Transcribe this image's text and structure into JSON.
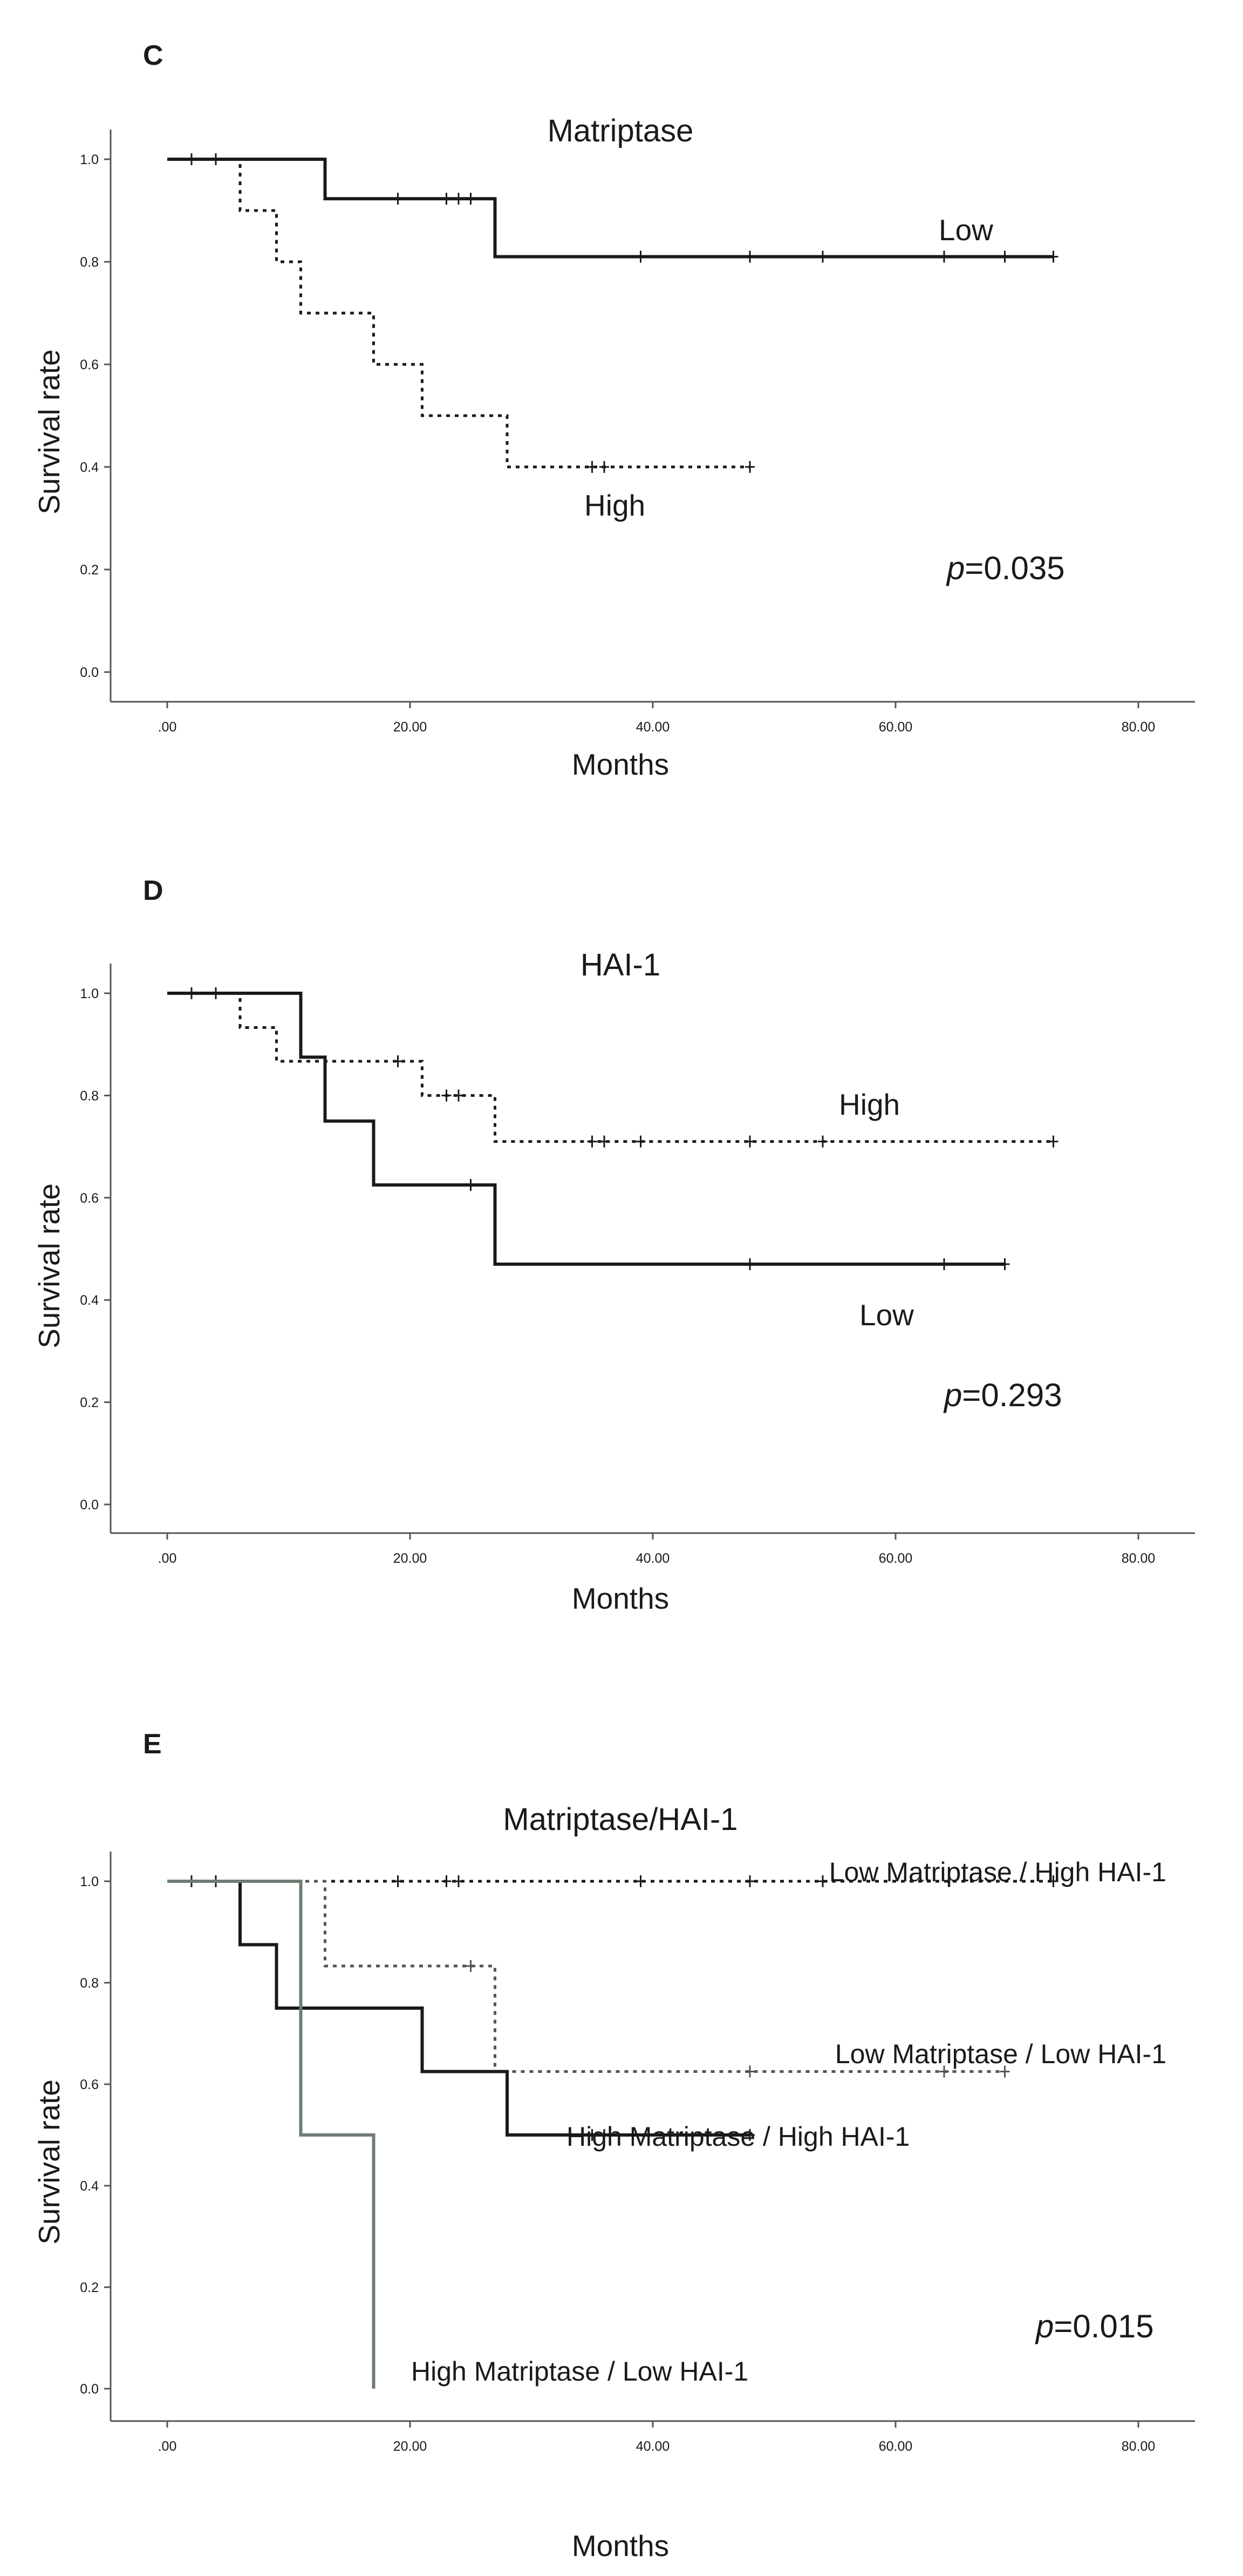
{
  "panels": [
    {
      "id": "C",
      "letter": "C",
      "title": "Matriptase",
      "xlabel": "Months",
      "ylabel": "Survival rate",
      "p_prefix": "p",
      "p_rest": "=0.035"
    },
    {
      "id": "D",
      "letter": "D",
      "title": "HAI-1",
      "xlabel": "Months",
      "ylabel": "Survival rate",
      "p_prefix": "p",
      "p_rest": "=0.293"
    },
    {
      "id": "E",
      "letter": "E",
      "title": "Matriptase/HAI-1",
      "xlabel": "Months",
      "ylabel": "Survival rate",
      "p_prefix": "p",
      "p_rest": "=0.015"
    }
  ],
  "colors": {
    "black": "#1a1a1a",
    "gray_dotted": "#555555",
    "gray_green": "#6e7d72"
  },
  "chart_data": [
    {
      "type": "line",
      "subtype": "kaplan-meier",
      "title": "Matriptase",
      "xlabel": "Months",
      "ylabel": "Survival rate",
      "xlim": [
        0,
        80
      ],
      "ylim": [
        0,
        1.0
      ],
      "xticks": [
        0,
        20,
        40,
        60,
        80
      ],
      "xtick_labels": [
        ".00",
        "20.00",
        "40.00",
        "60.00",
        "80.00"
      ],
      "yticks": [
        0,
        0.2,
        0.4,
        0.6,
        0.8,
        1.0
      ],
      "ytick_labels": [
        "0.0",
        "0.2",
        "0.4",
        "0.6",
        "0.8",
        "1.0"
      ],
      "p_value": "p=0.035",
      "series": [
        {
          "name": "Low",
          "label": "Low",
          "style": "solid",
          "color": "#1a1a1a",
          "steps": [
            [
              0,
              1.0
            ],
            [
              13,
              0.923
            ],
            [
              27,
              0.81
            ],
            [
              73,
              0.81
            ]
          ],
          "censored": [
            2,
            4,
            19,
            23,
            24,
            25,
            39,
            48,
            54,
            64,
            69,
            73
          ]
        },
        {
          "name": "High",
          "label": "High",
          "style": "dotted",
          "color": "#1a1a1a",
          "steps": [
            [
              0,
              1.0
            ],
            [
              6,
              0.9
            ],
            [
              9,
              0.8
            ],
            [
              11,
              0.7
            ],
            [
              17,
              0.6
            ],
            [
              21,
              0.5
            ],
            [
              28,
              0.4
            ],
            [
              48,
              0.4
            ]
          ],
          "censored": [
            35,
            36,
            48
          ]
        }
      ]
    },
    {
      "type": "line",
      "subtype": "kaplan-meier",
      "title": "HAI-1",
      "xlabel": "Months",
      "ylabel": "Survival rate",
      "xlim": [
        0,
        80
      ],
      "ylim": [
        0,
        1.0
      ],
      "xticks": [
        0,
        20,
        40,
        60,
        80
      ],
      "xtick_labels": [
        ".00",
        "20.00",
        "40.00",
        "60.00",
        "80.00"
      ],
      "yticks": [
        0,
        0.2,
        0.4,
        0.6,
        0.8,
        1.0
      ],
      "ytick_labels": [
        "0.0",
        "0.2",
        "0.4",
        "0.6",
        "0.8",
        "1.0"
      ],
      "p_value": "p=0.293",
      "series": [
        {
          "name": "High",
          "label": "High",
          "style": "dotted",
          "color": "#1a1a1a",
          "steps": [
            [
              0,
              1.0
            ],
            [
              6,
              0.933
            ],
            [
              9,
              0.867
            ],
            [
              21,
              0.8
            ],
            [
              27,
              0.71
            ],
            [
              73,
              0.71
            ]
          ],
          "censored": [
            2,
            4,
            19,
            23,
            24,
            35,
            36,
            39,
            48,
            54,
            73
          ]
        },
        {
          "name": "Low",
          "label": "Low",
          "style": "solid",
          "color": "#1a1a1a",
          "steps": [
            [
              0,
              1.0
            ],
            [
              11,
              0.875
            ],
            [
              13,
              0.75
            ],
            [
              17,
              0.625
            ],
            [
              27,
              0.47
            ],
            [
              69,
              0.47
            ]
          ],
          "censored": [
            25,
            48,
            64,
            69
          ]
        }
      ]
    },
    {
      "type": "line",
      "subtype": "kaplan-meier",
      "title": "Matriptase/HAI-1",
      "xlabel": "Months",
      "ylabel": "Survival rate",
      "xlim": [
        0,
        80
      ],
      "ylim": [
        0,
        1.0
      ],
      "xticks": [
        0,
        20,
        40,
        60,
        80
      ],
      "xtick_labels": [
        ".00",
        "20.00",
        "40.00",
        "60.00",
        "80.00"
      ],
      "yticks": [
        0,
        0.2,
        0.4,
        0.6,
        0.8,
        1.0
      ],
      "ytick_labels": [
        "0.0",
        "0.2",
        "0.4",
        "0.6",
        "0.8",
        "1.0"
      ],
      "p_value": "p=0.015",
      "series": [
        {
          "name": "Low Matriptase / High HAI-1",
          "label": "Low Matriptase / High HAI-1",
          "style": "dotted",
          "color": "#1a1a1a",
          "steps": [
            [
              0,
              1.0
            ],
            [
              73,
              1.0
            ]
          ],
          "censored": [
            2,
            4,
            19,
            23,
            24,
            39,
            48,
            54,
            73
          ]
        },
        {
          "name": "Low Matriptase / Low HAI-1",
          "label": "Low Matriptase / Low HAI-1",
          "style": "dotted",
          "color": "#555555",
          "steps": [
            [
              0,
              1.0
            ],
            [
              13,
              0.833
            ],
            [
              27,
              0.625
            ],
            [
              69,
              0.625
            ]
          ],
          "censored": [
            25,
            48,
            64,
            69
          ]
        },
        {
          "name": "High Matriptase / High HAI-1",
          "label": "High Matriptase / High HAI-1",
          "style": "solid",
          "color": "#1a1a1a",
          "steps": [
            [
              0,
              1.0
            ],
            [
              6,
              0.875
            ],
            [
              9,
              0.75
            ],
            [
              21,
              0.625
            ],
            [
              28,
              0.5
            ],
            [
              48,
              0.5
            ]
          ],
          "censored": [
            35,
            36,
            48
          ]
        },
        {
          "name": "High Matriptase / Low HAI-1",
          "label": "High Matriptase / Low HAI-1",
          "style": "solid",
          "color": "#6e7d72",
          "steps": [
            [
              0,
              1.0
            ],
            [
              11,
              0.5
            ],
            [
              17,
              0.0
            ]
          ],
          "censored": []
        }
      ]
    }
  ]
}
